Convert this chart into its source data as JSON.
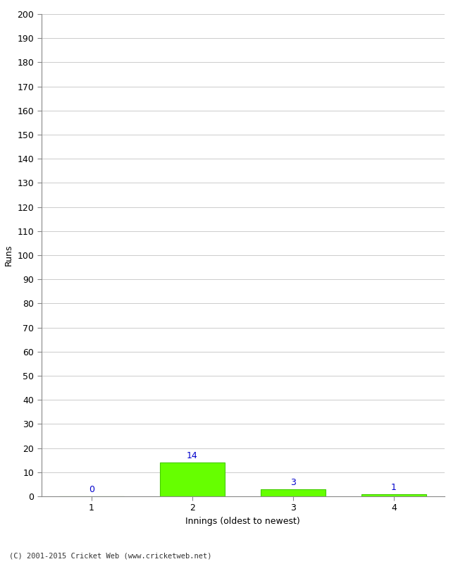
{
  "categories": [
    1,
    2,
    3,
    4
  ],
  "values": [
    0,
    14,
    3,
    1
  ],
  "bar_color": "#66ff00",
  "bar_edge_color": "#44cc00",
  "value_label_color": "#0000cc",
  "xlabel": "Innings (oldest to newest)",
  "ylabel": "Runs",
  "ylim": [
    0,
    200
  ],
  "yticks": [
    0,
    10,
    20,
    30,
    40,
    50,
    60,
    70,
    80,
    90,
    100,
    110,
    120,
    130,
    140,
    150,
    160,
    170,
    180,
    190,
    200
  ],
  "xticks": [
    1,
    2,
    3,
    4
  ],
  "footer": "(C) 2001-2015 Cricket Web (www.cricketweb.net)",
  "background_color": "#ffffff",
  "grid_color": "#cccccc",
  "bar_width": 0.65
}
